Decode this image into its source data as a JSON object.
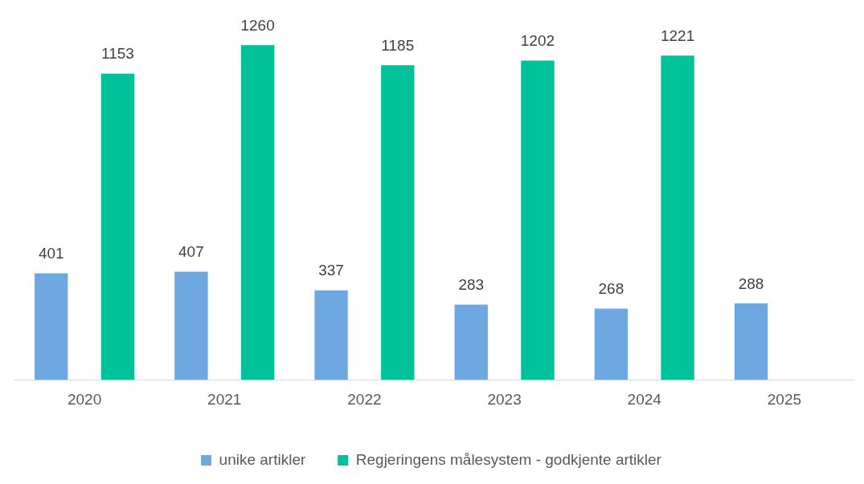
{
  "chart_data": {
    "type": "bar",
    "categories": [
      "2020",
      "2021",
      "2022",
      "2023",
      "2024",
      "2025"
    ],
    "series": [
      {
        "name": "unike artikler",
        "color": "#6fa8e0",
        "values": [
          401,
          407,
          337,
          283,
          268,
          288
        ]
      },
      {
        "name": "Regjeringens målesystem - godkjente artikler",
        "color": "#00c19a",
        "values": [
          1153,
          1260,
          1185,
          1202,
          1221,
          null
        ]
      }
    ],
    "relative": false,
    "data_labels": true,
    "grid": false,
    "legend": "bottom"
  }
}
